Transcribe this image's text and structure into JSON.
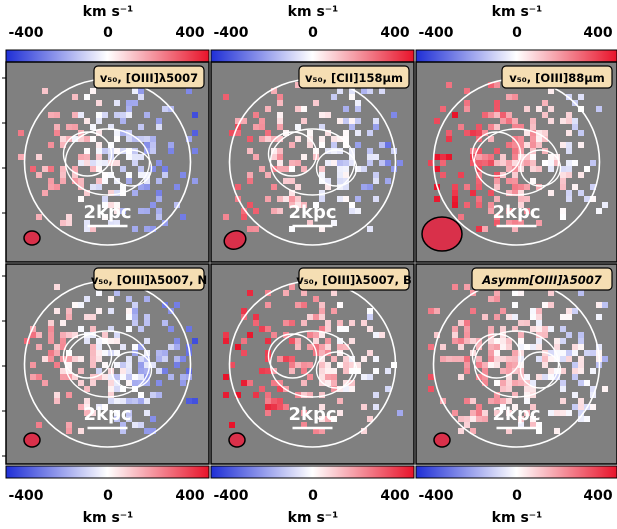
{
  "colorbar": {
    "unit_label": "km s⁻¹",
    "tick_labels": [
      "-400",
      "0",
      "400"
    ],
    "tick_values": [
      -400,
      0,
      400
    ],
    "range": [
      -500,
      500
    ],
    "colors": {
      "low": "#1f2fd6",
      "mid": "#ffffff",
      "high": "#e8132a"
    }
  },
  "panels": [
    {
      "label": "v₅₀, [OIII]λ5007",
      "seed": 11,
      "bias": -0.05,
      "density": 0.62
    },
    {
      "label": "v₅₀, [CII]158μm",
      "seed": 23,
      "bias": 0.05,
      "density": 0.42
    },
    {
      "label": "v₅₀, [OIII]88μm",
      "seed": 37,
      "bias": 0.35,
      "density": 0.6
    },
    {
      "label": "v₅₀, [OIII]λ5007, N",
      "seed": 41,
      "bias": -0.05,
      "density": 0.6
    },
    {
      "label": "v₅₀, [OIII]λ5007, B",
      "seed": 53,
      "bias": 0.35,
      "density": 0.5
    },
    {
      "label": "Asymm[OIII]λ5007",
      "seed": 67,
      "bias": 0.15,
      "density": 0.66
    }
  ],
  "scalebar_label": "2kpc",
  "colors": {
    "panel_bg": "#808080",
    "label_box": "#f5deb3",
    "beam": "#d9304a",
    "contour": "#ffffff"
  }
}
